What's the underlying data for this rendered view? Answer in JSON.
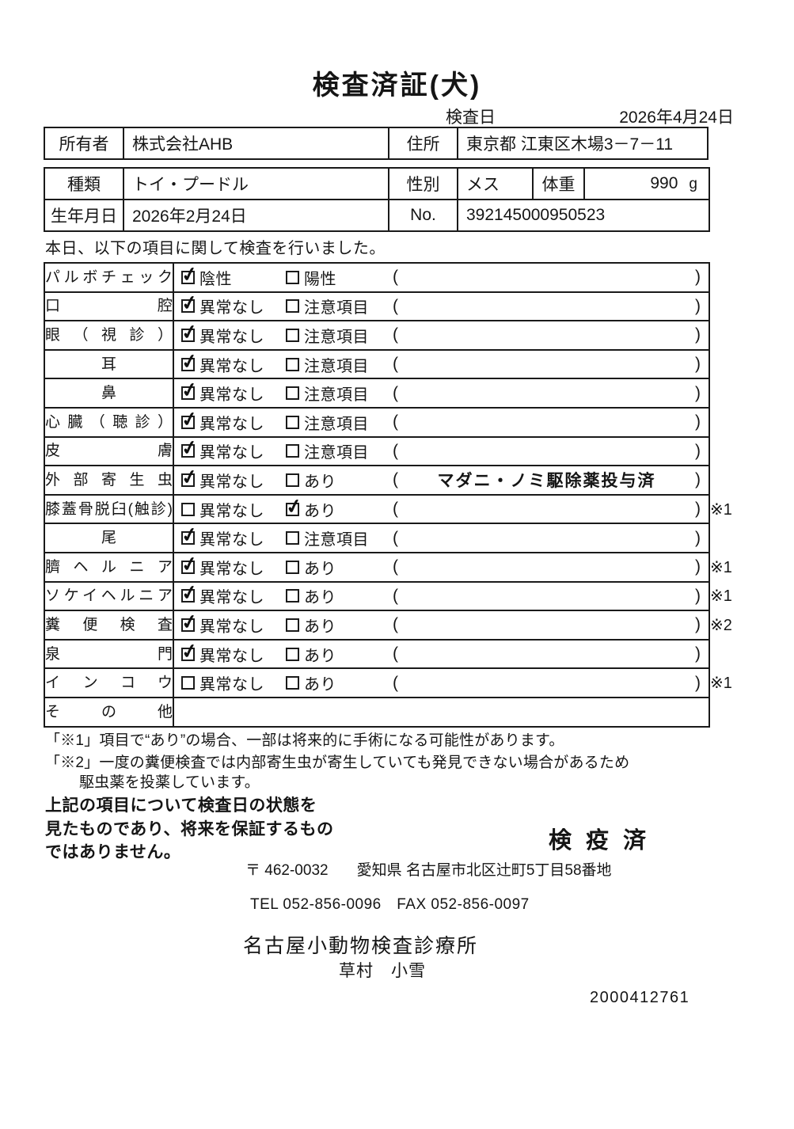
{
  "document": {
    "title": "検査済証(犬)",
    "inspection_date_label": "検査日",
    "inspection_date": "2026年4月24日",
    "serial_number": "2000412761"
  },
  "owner_table": {
    "owner_label": "所有者",
    "owner_name": "株式会社AHB",
    "address_label": "住所",
    "address": "東京都 江東区木場3－7－11"
  },
  "pet_table": {
    "breed_label": "種類",
    "breed": "トイ・プードル",
    "sex_label": "性別",
    "sex": "メス",
    "weight_label": "体重",
    "weight_value": "990",
    "weight_unit": "g",
    "birthdate_label": "生年月日",
    "birthdate": "2026年2月24日",
    "no_label": "No.",
    "no_value": "392145000950523"
  },
  "intro_text": "本日、以下の項目に関して検査を行いました。",
  "exam_table": {
    "paren_open": "(",
    "paren_close": ")",
    "rows": [
      {
        "label": "パルボチェック",
        "opt1": "陰性",
        "opt1_checked": true,
        "opt2": "陽性",
        "opt2_checked": false,
        "note": "",
        "ref": ""
      },
      {
        "label": "口腔",
        "opt1": "異常なし",
        "opt1_checked": true,
        "opt2": "注意項目",
        "opt2_checked": false,
        "note": "",
        "ref": ""
      },
      {
        "label": "眼（視診）",
        "opt1": "異常なし",
        "opt1_checked": true,
        "opt2": "注意項目",
        "opt2_checked": false,
        "note": "",
        "ref": ""
      },
      {
        "label": "耳",
        "align": "center",
        "opt1": "異常なし",
        "opt1_checked": true,
        "opt2": "注意項目",
        "opt2_checked": false,
        "note": "",
        "ref": ""
      },
      {
        "label": "鼻",
        "align": "center",
        "opt1": "異常なし",
        "opt1_checked": true,
        "opt2": "注意項目",
        "opt2_checked": false,
        "note": "",
        "ref": ""
      },
      {
        "label": "心臓（聴診）",
        "opt1": "異常なし",
        "opt1_checked": true,
        "opt2": "注意項目",
        "opt2_checked": false,
        "note": "",
        "ref": ""
      },
      {
        "label": "皮膚",
        "opt1": "異常なし",
        "opt1_checked": true,
        "opt2": "注意項目",
        "opt2_checked": false,
        "note": "",
        "ref": ""
      },
      {
        "label": "外部寄生虫",
        "opt1": "異常なし",
        "opt1_checked": true,
        "opt2": "あり",
        "opt2_checked": false,
        "note": "マダニ・ノミ駆除薬投与済",
        "ref": ""
      },
      {
        "label": "膝蓋骨脱臼(触診)",
        "opt1": "異常なし",
        "opt1_checked": false,
        "opt2": "あり",
        "opt2_checked": true,
        "note": "",
        "ref": "※1"
      },
      {
        "label": "尾",
        "align": "center",
        "opt1": "異常なし",
        "opt1_checked": true,
        "opt2": "注意項目",
        "opt2_checked": false,
        "note": "",
        "ref": ""
      },
      {
        "label": "臍ヘルニア",
        "opt1": "異常なし",
        "opt1_checked": true,
        "opt2": "あり",
        "opt2_checked": false,
        "note": "",
        "ref": "※1"
      },
      {
        "label": "ソケイヘルニア",
        "opt1": "異常なし",
        "opt1_checked": true,
        "opt2": "あり",
        "opt2_checked": false,
        "note": "",
        "ref": "※1"
      },
      {
        "label": "糞便検査",
        "opt1": "異常なし",
        "opt1_checked": true,
        "opt2": "あり",
        "opt2_checked": false,
        "note": "",
        "ref": "※2"
      },
      {
        "label": "泉門",
        "opt1": "異常なし",
        "opt1_checked": true,
        "opt2": "あり",
        "opt2_checked": false,
        "note": "",
        "ref": ""
      },
      {
        "label": "インコウ",
        "opt1": "異常なし",
        "opt1_checked": false,
        "opt2": "あり",
        "opt2_checked": false,
        "note": "",
        "ref": "※1"
      },
      {
        "label": "その他",
        "empty": true,
        "ref": ""
      }
    ]
  },
  "footnotes": {
    "line1": "「※1」項目で“あり”の場合、一部は将来的に手術になる可能性があります。",
    "line2": "「※2」一度の糞便検査では内部寄生虫が寄生していても発見できない場合があるため",
    "line3": "駆虫薬を投薬しています。"
  },
  "statement": {
    "line1": "上記の項目について検査日の状態を",
    "line2": "見たものであり、将来を保証するもの",
    "line3": "ではありません。"
  },
  "quarantine_stamp": "検 疫 済",
  "clinic": {
    "postal_code": "〒 462-0032",
    "address": "愛知県 名古屋市北区辻町5丁目58番地",
    "tel_fax": "TEL 052-856-0096　FAX 052-856-0097",
    "name": "名古屋小動物検査診療所",
    "veterinarian": "草村　小雪"
  }
}
